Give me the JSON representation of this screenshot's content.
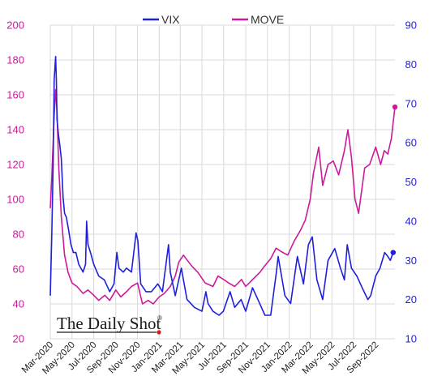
{
  "colors": {
    "vix": "#1f1fdc",
    "move": "#cc1a9a",
    "grid": "#d9d9d9",
    "watermark_dot": "#d01c1c"
  },
  "chart_data": {
    "type": "line",
    "title": "",
    "legend": {
      "placement": "top-center",
      "entries": [
        "VIX",
        "MOVE"
      ]
    },
    "grid": true,
    "watermark": "The Daily Shot",
    "watermark_mark": "®",
    "x_ticks": [
      "Mar-2020",
      "May-2020",
      "Jul-2020",
      "Sep-2020",
      "Nov-2020",
      "Jan-2021",
      "Mar-2021",
      "May-2021",
      "Jul-2021",
      "Sep-2021",
      "Nov-2021",
      "Jan-2022",
      "Mar-2022",
      "May-2022",
      "Jul-2022",
      "Sep-2022"
    ],
    "x_range": [
      "2020-03-01",
      "2022-10-25"
    ],
    "left_axis": {
      "series": "MOVE",
      "ylim": [
        20,
        200
      ],
      "ticks": [
        20,
        40,
        60,
        80,
        100,
        120,
        140,
        160,
        180,
        200
      ]
    },
    "right_axis": {
      "series": "VIX",
      "ylim": [
        10,
        90
      ],
      "ticks": [
        10,
        20,
        30,
        40,
        50,
        60,
        70,
        80,
        90
      ]
    },
    "series": [
      {
        "name": "VIX",
        "axis": "right",
        "x": [
          "2020-03-01",
          "2020-03-05",
          "2020-03-09",
          "2020-03-12",
          "2020-03-16",
          "2020-03-18",
          "2020-03-20",
          "2020-03-24",
          "2020-03-27",
          "2020-04-01",
          "2020-04-06",
          "2020-04-10",
          "2020-04-15",
          "2020-04-21",
          "2020-04-28",
          "2020-05-05",
          "2020-05-12",
          "2020-05-20",
          "2020-06-01",
          "2020-06-08",
          "2020-06-11",
          "2020-06-15",
          "2020-06-22",
          "2020-07-01",
          "2020-07-15",
          "2020-07-31",
          "2020-08-15",
          "2020-08-27",
          "2020-09-04",
          "2020-09-10",
          "2020-09-22",
          "2020-10-01",
          "2020-10-15",
          "2020-10-28",
          "2020-11-02",
          "2020-11-10",
          "2020-11-25",
          "2020-12-10",
          "2020-12-28",
          "2021-01-10",
          "2021-01-27",
          "2021-02-01",
          "2021-02-15",
          "2021-03-04",
          "2021-03-20",
          "2021-04-10",
          "2021-05-01",
          "2021-05-12",
          "2021-05-18",
          "2021-06-01",
          "2021-06-18",
          "2021-06-30",
          "2021-07-19",
          "2021-08-01",
          "2021-08-19",
          "2021-09-01",
          "2021-09-20",
          "2021-10-05",
          "2021-10-25",
          "2021-11-10",
          "2021-11-26",
          "2021-12-01",
          "2021-12-20",
          "2022-01-05",
          "2022-01-24",
          "2022-02-10",
          "2022-02-24",
          "2022-03-07",
          "2022-03-20",
          "2022-04-05",
          "2022-04-20",
          "2022-05-09",
          "2022-05-25",
          "2022-06-05",
          "2022-06-13",
          "2022-06-25",
          "2022-07-10",
          "2022-07-25",
          "2022-08-10",
          "2022-08-18",
          "2022-09-01",
          "2022-09-13",
          "2022-09-26",
          "2022-10-05",
          "2022-10-12",
          "2022-10-20"
        ],
        "values": [
          21,
          36,
          54,
          76,
          82,
          76,
          66,
          62,
          60,
          56,
          46,
          42,
          41,
          38,
          34,
          32,
          32,
          29,
          27,
          29,
          40,
          34,
          32,
          29,
          26,
          25,
          22,
          24,
          32,
          28,
          27,
          28,
          27,
          37,
          35,
          24,
          22,
          22,
          24,
          22,
          34,
          27,
          21,
          28,
          20,
          18,
          17,
          22,
          19,
          17,
          16,
          17,
          22,
          18,
          20,
          17,
          23,
          20,
          16,
          16,
          27,
          31,
          21,
          19,
          31,
          24,
          34,
          36,
          25,
          20,
          30,
          33,
          28,
          25,
          34,
          28,
          26,
          23,
          20,
          21,
          26,
          28,
          32,
          31,
          30,
          32
        ]
      },
      {
        "name": "MOVE",
        "axis": "left",
        "x": [
          "2020-03-01",
          "2020-03-05",
          "2020-03-09",
          "2020-03-12",
          "2020-03-16",
          "2020-03-20",
          "2020-03-25",
          "2020-04-01",
          "2020-04-10",
          "2020-04-20",
          "2020-05-01",
          "2020-05-15",
          "2020-06-01",
          "2020-06-15",
          "2020-07-01",
          "2020-07-15",
          "2020-08-01",
          "2020-08-15",
          "2020-09-01",
          "2020-09-15",
          "2020-10-01",
          "2020-10-15",
          "2020-11-01",
          "2020-11-15",
          "2020-12-01",
          "2020-12-15",
          "2021-01-01",
          "2021-01-15",
          "2021-02-01",
          "2021-02-15",
          "2021-02-25",
          "2021-03-10",
          "2021-04-01",
          "2021-04-20",
          "2021-05-10",
          "2021-06-01",
          "2021-06-15",
          "2021-07-01",
          "2021-07-15",
          "2021-08-01",
          "2021-08-20",
          "2021-09-01",
          "2021-09-20",
          "2021-10-10",
          "2021-10-25",
          "2021-11-10",
          "2021-11-25",
          "2021-12-10",
          "2021-12-28",
          "2022-01-15",
          "2022-02-01",
          "2022-02-15",
          "2022-03-01",
          "2022-03-10",
          "2022-03-25",
          "2022-04-05",
          "2022-04-20",
          "2022-05-05",
          "2022-05-20",
          "2022-06-05",
          "2022-06-15",
          "2022-06-25",
          "2022-07-05",
          "2022-07-15",
          "2022-08-01",
          "2022-08-15",
          "2022-09-01",
          "2022-09-15",
          "2022-09-25",
          "2022-10-05",
          "2022-10-15",
          "2022-10-25"
        ],
        "values": [
          95,
          112,
          132,
          148,
          163,
          150,
          118,
          90,
          68,
          58,
          52,
          50,
          46,
          48,
          45,
          42,
          45,
          42,
          48,
          44,
          47,
          50,
          52,
          40,
          42,
          40,
          44,
          46,
          50,
          56,
          64,
          68,
          62,
          58,
          52,
          50,
          56,
          54,
          52,
          50,
          54,
          50,
          54,
          58,
          62,
          66,
          72,
          70,
          68,
          76,
          82,
          88,
          100,
          115,
          130,
          108,
          120,
          122,
          114,
          128,
          140,
          124,
          100,
          92,
          118,
          120,
          130,
          120,
          128,
          126,
          135,
          153
        ]
      }
    ]
  }
}
